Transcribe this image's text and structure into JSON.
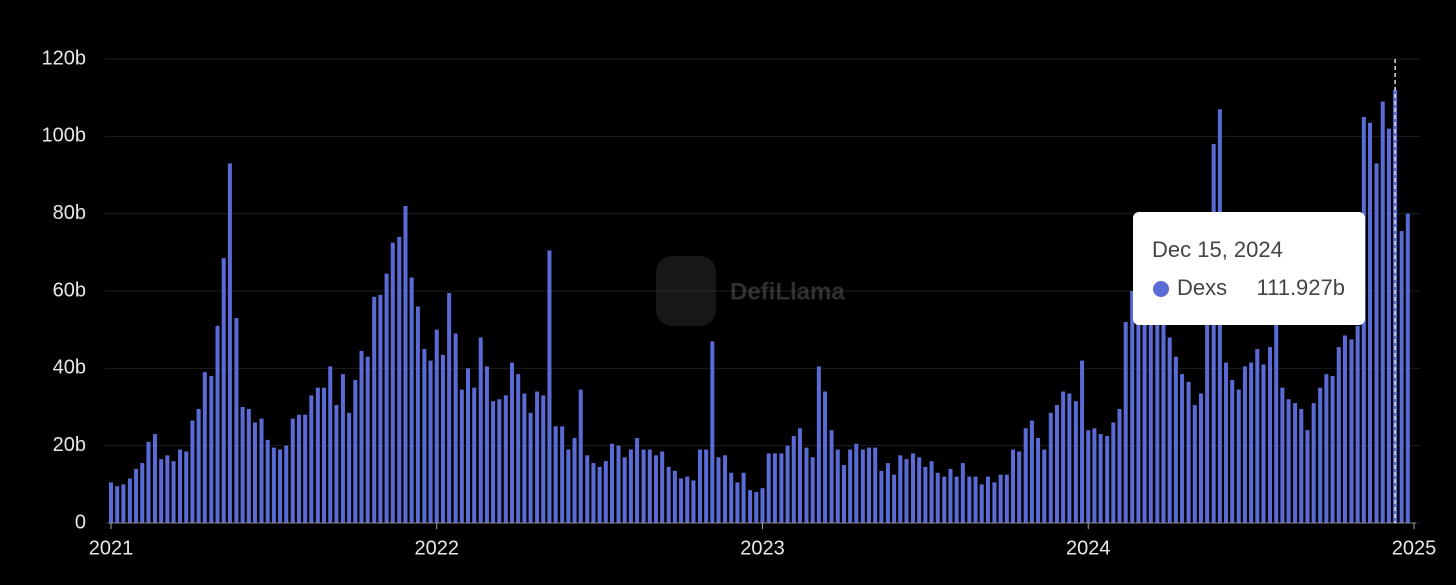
{
  "chart_data": {
    "type": "bar",
    "series": [
      {
        "name": "Dexs",
        "color": "#5b6bd6",
        "values": [
          10.5,
          9.5,
          10,
          11.5,
          14,
          15.5,
          21,
          23,
          16.5,
          17.5,
          16,
          19,
          18.5,
          26.5,
          29.5,
          39,
          38,
          51,
          68.5,
          93,
          53,
          30,
          29.5,
          26,
          27,
          21.5,
          19.5,
          19,
          20,
          27,
          28,
          28,
          33,
          35,
          35,
          40.5,
          30.5,
          38.5,
          28.5,
          37,
          44.5,
          43,
          58.5,
          59,
          64.5,
          72.5,
          74,
          82,
          63.5,
          56,
          45,
          42,
          50,
          43.5,
          59.5,
          49,
          34.5,
          40,
          35,
          48,
          40.5,
          31.5,
          32,
          33,
          41.5,
          38.5,
          33.5,
          28.5,
          34,
          33,
          70.5,
          25,
          25,
          19,
          22,
          34.5,
          17.5,
          15.5,
          14.5,
          16,
          20.5,
          20,
          17,
          19,
          22,
          19,
          19,
          17.5,
          18.5,
          14.5,
          13.5,
          11.5,
          12,
          11,
          19,
          19,
          47,
          17,
          17.5,
          13,
          10.5,
          13,
          8.5,
          8,
          9,
          18,
          18,
          18,
          20,
          22.5,
          24.5,
          19.5,
          17,
          40.5,
          34,
          24,
          19,
          15,
          19,
          20.5,
          19,
          19.5,
          19.5,
          13.5,
          15.5,
          12.5,
          17.5,
          16.5,
          18,
          17,
          14.5,
          16,
          13,
          12,
          14,
          12,
          15.5,
          12,
          12,
          10,
          12,
          10.5,
          12.5,
          12.5,
          19,
          18.5,
          24.5,
          26.5,
          22,
          19,
          28.5,
          30.5,
          34,
          33.5,
          31.5,
          42,
          24,
          24.5,
          23,
          22.5,
          26,
          29.5,
          52,
          60,
          58,
          56,
          56,
          56,
          52,
          48,
          43,
          38.5,
          36.5,
          30.5,
          33.5,
          52,
          98,
          107,
          41.5,
          37,
          34.5,
          40.5,
          41.5,
          45,
          41,
          45.5,
          52,
          35,
          32,
          31,
          29.5,
          24,
          31,
          35,
          38.5,
          38,
          45.5,
          48.5,
          47.5,
          51,
          105,
          103.5,
          93,
          109,
          102,
          111.927,
          75.5,
          80
        ]
      }
    ],
    "x": [
      2021,
      2021.019,
      2021.038,
      2021.058,
      2021.077,
      2021.096,
      2021.115,
      2021.135,
      2021.154,
      2021.173,
      2021.192,
      2021.212,
      2021.231,
      2021.25,
      2021.269,
      2021.288,
      2021.308,
      2021.327,
      2021.346,
      2021.365,
      2021.385,
      2021.404,
      2021.423,
      2021.442,
      2021.462,
      2021.481,
      2021.5,
      2021.519,
      2021.538,
      2021.558,
      2021.577,
      2021.596,
      2021.615,
      2021.635,
      2021.654,
      2021.673,
      2021.692,
      2021.712,
      2021.731,
      2021.75,
      2021.769,
      2021.788,
      2021.808,
      2021.827,
      2021.846,
      2021.865,
      2021.885,
      2021.904,
      2021.923,
      2021.942,
      2021.962,
      2021.981,
      2022,
      2022.019,
      2022.038,
      2022.058,
      2022.077,
      2022.096,
      2022.115,
      2022.135,
      2022.154,
      2022.173,
      2022.192,
      2022.212,
      2022.231,
      2022.25,
      2022.269,
      2022.288,
      2022.308,
      2022.327,
      2022.346,
      2022.365,
      2022.385,
      2022.404,
      2022.423,
      2022.442,
      2022.462,
      2022.481,
      2022.5,
      2022.519,
      2022.538,
      2022.558,
      2022.577,
      2022.596,
      2022.615,
      2022.635,
      2022.654,
      2022.673,
      2022.692,
      2022.712,
      2022.731,
      2022.75,
      2022.769,
      2022.788,
      2022.808,
      2022.827,
      2022.846,
      2022.865,
      2022.885,
      2022.904,
      2022.923,
      2022.942,
      2022.962,
      2022.981,
      2023,
      2023.019,
      2023.038,
      2023.058,
      2023.077,
      2023.096,
      2023.115,
      2023.135,
      2023.154,
      2023.173,
      2023.192,
      2023.212,
      2023.231,
      2023.25,
      2023.269,
      2023.288,
      2023.308,
      2023.327,
      2023.346,
      2023.365,
      2023.385,
      2023.404,
      2023.423,
      2023.442,
      2023.462,
      2023.481,
      2023.5,
      2023.519,
      2023.538,
      2023.558,
      2023.577,
      2023.596,
      2023.615,
      2023.635,
      2023.654,
      2023.673,
      2023.692,
      2023.712,
      2023.731,
      2023.75,
      2023.769,
      2023.788,
      2023.808,
      2023.827,
      2023.846,
      2023.865,
      2023.885,
      2023.904,
      2023.923,
      2023.942,
      2023.962,
      2023.981,
      2024,
      2024.019,
      2024.038,
      2024.058,
      2024.077,
      2024.096,
      2024.115,
      2024.135,
      2024.154,
      2024.173,
      2024.192,
      2024.212,
      2024.231,
      2024.25,
      2024.269,
      2024.288,
      2024.308,
      2024.327,
      2024.346,
      2024.365,
      2024.385,
      2024.404,
      2024.423,
      2024.442,
      2024.462,
      2024.481,
      2024.5,
      2024.519,
      2024.538,
      2024.558,
      2024.577,
      2024.596,
      2024.615,
      2024.635,
      2024.654,
      2024.673,
      2024.692,
      2024.712,
      2024.731,
      2024.75,
      2024.769,
      2024.788,
      2024.808,
      2024.827,
      2024.846,
      2024.865,
      2024.885,
      2024.904,
      2024.923,
      2024.942,
      2024.962,
      2024.981
    ],
    "xlim": [
      2021,
      2025
    ],
    "xticks": [
      2021,
      2022,
      2023,
      2024,
      2025
    ],
    "ylim": [
      0,
      120
    ],
    "yticks": [
      0,
      {
        "value": 20,
        "label": "20b"
      },
      {
        "value": 40,
        "label": "40b"
      },
      {
        "value": 60,
        "label": "60b"
      },
      {
        "value": 80,
        "label": "80b"
      },
      {
        "value": 100,
        "label": "100b"
      },
      {
        "value": 120,
        "label": "120b"
      }
    ],
    "grid": true,
    "watermark": "DefiLlama",
    "tooltip": {
      "index": 205,
      "date": "Dec 15, 2024",
      "value_label": "111.927b"
    }
  }
}
